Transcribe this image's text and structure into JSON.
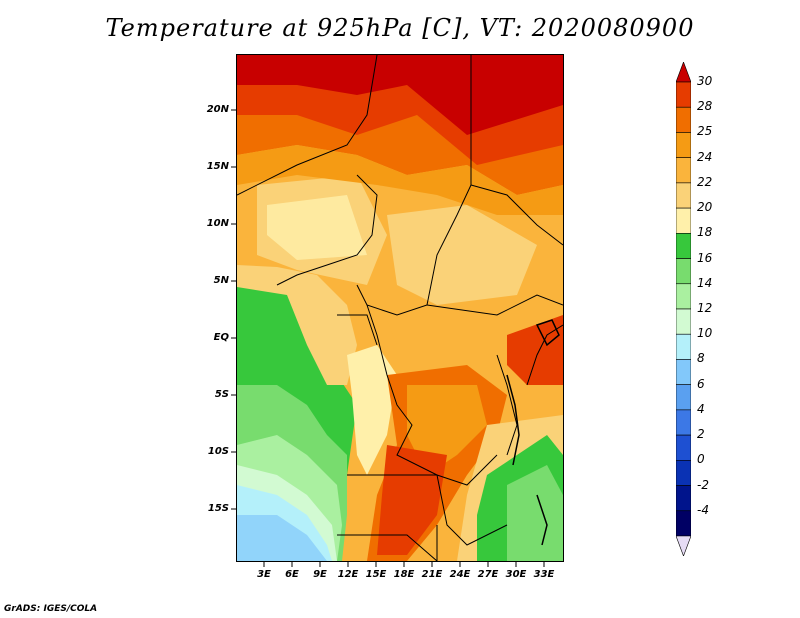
{
  "title": "Temperature at 925hPa [C], VT: 2020080900",
  "footer": "GrADS: IGES/COLA",
  "map": {
    "lat_labels": [
      "20N",
      "15N",
      "10N",
      "5N",
      "EQ",
      "5S",
      "10S",
      "15S"
    ],
    "lon_labels": [
      "3E",
      "6E",
      "9E",
      "12E",
      "15E",
      "18E",
      "21E",
      "24E",
      "27E",
      "30E",
      "33E"
    ]
  },
  "colorbar": {
    "labels": [
      "30",
      "28",
      "25",
      "24",
      "22",
      "20",
      "18",
      "16",
      "14",
      "12",
      "10",
      "8",
      "6",
      "4",
      "2",
      "0",
      "-2",
      "-4"
    ],
    "colors": [
      "#c80000",
      "#e63c00",
      "#f06e00",
      "#f59b14",
      "#fab43c",
      "#fad278",
      "#fff0aa",
      "#37c83c",
      "#78dc6e",
      "#aaf0a0",
      "#d2fad2",
      "#b4f0fa",
      "#82c8fa",
      "#5aa0f0",
      "#3c78e6",
      "#1e50d2",
      "#0a32b4",
      "#00148c",
      "#000064",
      "#e6dcf5"
    ]
  }
}
